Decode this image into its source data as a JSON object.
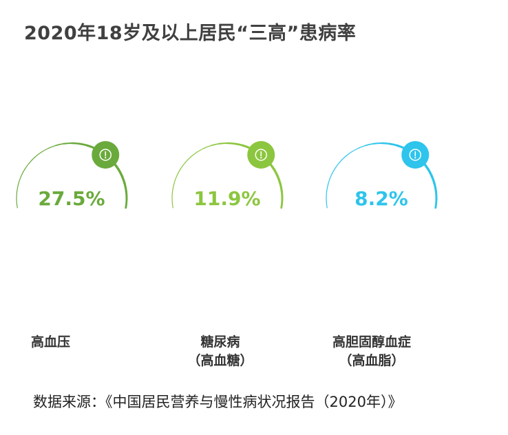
{
  "title": "2020年18岁及以上居民“三高”患病率",
  "source": "数据来源：《中国居民营养与慢性病状况报告（2020年）》",
  "chart_data": {
    "type": "gauge",
    "unit": "%",
    "items": [
      {
        "label_line1": "高血压",
        "label_line2": "",
        "value": 27.5,
        "value_text": "27.5%",
        "color": "#6aaa3c"
      },
      {
        "label_line1": "糖尿病",
        "label_line2": "（高血糖）",
        "value": 11.9,
        "value_text": "11.9%",
        "color": "#8cc63f"
      },
      {
        "label_line1": "高胆固醇血症",
        "label_line2": "（高血脂）",
        "value": 8.2,
        "value_text": "8.2%",
        "color": "#2ec4ec"
      }
    ]
  },
  "icon": "exclamation-icon"
}
